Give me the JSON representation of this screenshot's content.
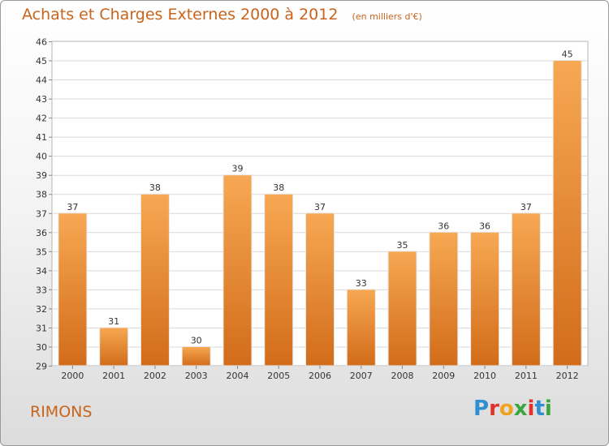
{
  "header": {
    "title": "Achats et Charges Externes 2000 à 2012",
    "unit": "(en milliers d'€)"
  },
  "footer": {
    "commune": "RIMONS",
    "logo_text": "Proxiti"
  },
  "colors": {
    "bar_light": "#f7a853",
    "bar_dark": "#d26c1a",
    "title": "#c8641c",
    "grid": "#d9d9d9"
  },
  "chart_data": {
    "type": "bar",
    "title": "Achats et Charges Externes 2000 à 2012",
    "unit": "(en milliers d'€)",
    "categories": [
      "2000",
      "2001",
      "2002",
      "2003",
      "2004",
      "2005",
      "2006",
      "2007",
      "2008",
      "2009",
      "2010",
      "2011",
      "2012"
    ],
    "values": [
      37,
      31,
      38,
      30,
      39,
      38,
      37,
      33,
      35,
      36,
      36,
      37,
      45
    ],
    "ylim": [
      29,
      46
    ],
    "yticks": [
      29,
      30,
      31,
      32,
      33,
      34,
      35,
      36,
      37,
      38,
      39,
      40,
      41,
      42,
      43,
      44,
      45,
      46
    ],
    "grid": true,
    "data_labels": true
  }
}
